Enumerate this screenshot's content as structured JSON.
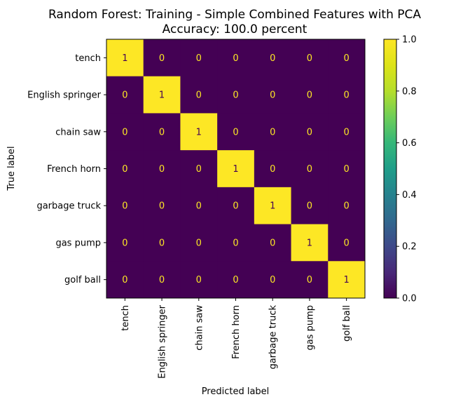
{
  "chart_data": {
    "type": "heatmap",
    "title_lines": [
      "Random Forest: Training - Simple Combined Features with PCA",
      "Accuracy: 100.0 percent"
    ],
    "xlabel": "Predicted label",
    "ylabel": "True label",
    "labels": [
      "tench",
      "English springer",
      "chain saw",
      "French horn",
      "garbage truck",
      "gas pump",
      "golf ball"
    ],
    "matrix": [
      [
        1,
        0,
        0,
        0,
        0,
        0,
        0
      ],
      [
        0,
        1,
        0,
        0,
        0,
        0,
        0
      ],
      [
        0,
        0,
        1,
        0,
        0,
        0,
        0
      ],
      [
        0,
        0,
        0,
        1,
        0,
        0,
        0
      ],
      [
        0,
        0,
        0,
        0,
        1,
        0,
        0
      ],
      [
        0,
        0,
        0,
        0,
        0,
        1,
        0
      ],
      [
        0,
        0,
        0,
        0,
        0,
        0,
        1
      ]
    ],
    "colorbar": {
      "range": [
        0,
        1
      ],
      "ticks": [
        "0.0",
        "0.2",
        "0.4",
        "0.6",
        "0.8",
        "1.0"
      ],
      "colormap": "viridis"
    },
    "colors": {
      "low": "#440154",
      "high": "#fde725",
      "text_on_low": "#fde725",
      "text_on_high": "#440154"
    }
  }
}
